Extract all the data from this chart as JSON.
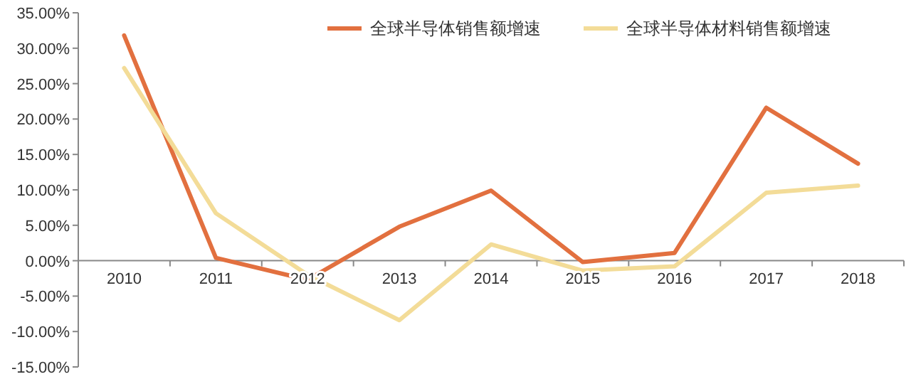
{
  "chart_data": {
    "type": "line",
    "categories": [
      "2010",
      "2011",
      "2012",
      "2013",
      "2014",
      "2015",
      "2016",
      "2017",
      "2018"
    ],
    "series": [
      {
        "name": "全球半导体销售额增速",
        "color": "#e2703f",
        "values": [
          31.8,
          0.4,
          -2.7,
          4.8,
          9.9,
          -0.2,
          1.1,
          21.6,
          13.7
        ]
      },
      {
        "name": "全球半导体材料销售额增速",
        "color": "#f3dc98",
        "values": [
          27.2,
          6.7,
          -2.0,
          -8.4,
          2.3,
          -1.4,
          -0.8,
          9.6,
          10.6
        ]
      }
    ],
    "ylim": [
      -15,
      35
    ],
    "yticks": [
      {
        "value": 35,
        "label": "35.00%"
      },
      {
        "value": 30,
        "label": "30.00%"
      },
      {
        "value": 25,
        "label": "25.00%"
      },
      {
        "value": 20,
        "label": "20.00%"
      },
      {
        "value": 15,
        "label": "15.00%"
      },
      {
        "value": 10,
        "label": "10.00%"
      },
      {
        "value": 5,
        "label": "5.00%"
      },
      {
        "value": 0,
        "label": "0.00%"
      },
      {
        "value": -5,
        "label": "-5.00%"
      },
      {
        "value": -10,
        "label": "-10.00%"
      },
      {
        "value": -15,
        "label": "-15.00%"
      }
    ],
    "grid": false,
    "legend": "top",
    "marker": "none",
    "line_style": "solid"
  }
}
